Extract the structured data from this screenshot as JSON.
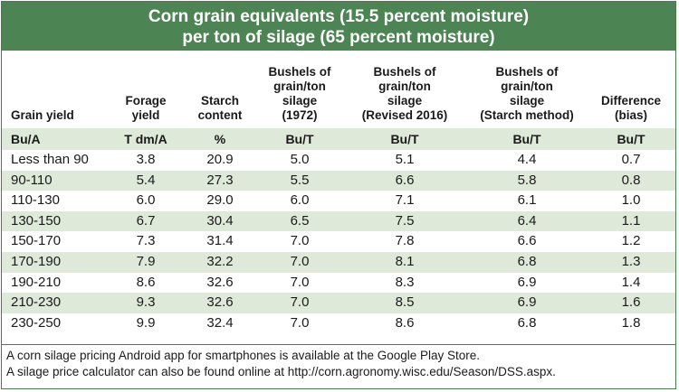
{
  "title": {
    "line1": "Corn grain equivalents (15.5 percent moisture)",
    "line2": "per ton of silage (65 percent moisture)"
  },
  "columns": [
    "Grain yield",
    "Forage\nyield",
    "Starch\ncontent",
    "Bushels of\ngrain/ton\nsilage\n(1972)",
    "Bushels of\ngrain/ton\nsilage\n(Revised 2016)",
    "Bushels of\ngrain/ton\nsilage\n(Starch method)",
    "Difference\n(bias)"
  ],
  "units": [
    "Bu/A",
    "T dm/A",
    "%",
    "Bu/T",
    "Bu/T",
    "Bu/T",
    "Bu/T"
  ],
  "rows": [
    [
      "Less than 90",
      "3.8",
      "20.9",
      "5.0",
      "5.1",
      "4.4",
      "0.7"
    ],
    [
      "90-110",
      "5.4",
      "27.3",
      "5.5",
      "6.6",
      "5.8",
      "0.8"
    ],
    [
      "110-130",
      "6.0",
      "29.0",
      "6.0",
      "7.1",
      "6.1",
      "1.0"
    ],
    [
      "130-150",
      "6.7",
      "30.4",
      "6.5",
      "7.5",
      "6.4",
      "1.1"
    ],
    [
      "150-170",
      "7.3",
      "31.4",
      "7.0",
      "7.8",
      "6.6",
      "1.2"
    ],
    [
      "170-190",
      "7.9",
      "32.2",
      "7.0",
      "8.1",
      "6.8",
      "1.3"
    ],
    [
      "190-210",
      "8.6",
      "32.6",
      "7.0",
      "8.3",
      "6.9",
      "1.4"
    ],
    [
      "210-230",
      "9.3",
      "32.6",
      "7.0",
      "8.5",
      "6.9",
      "1.6"
    ],
    [
      "230-250",
      "9.9",
      "32.4",
      "7.0",
      "8.6",
      "6.8",
      "1.8"
    ]
  ],
  "footnotes": {
    "line1": "A corn silage pricing Android app for smartphones is available at the Google Play Store.",
    "line2": "A silage price calculator can also be found online at http://corn.agronomy.wisc.edu/Season/DSS.aspx."
  },
  "colors": {
    "title_bg": "#4d8453",
    "row_shade": "#dfe9d9",
    "border": "#4a7a4f"
  }
}
